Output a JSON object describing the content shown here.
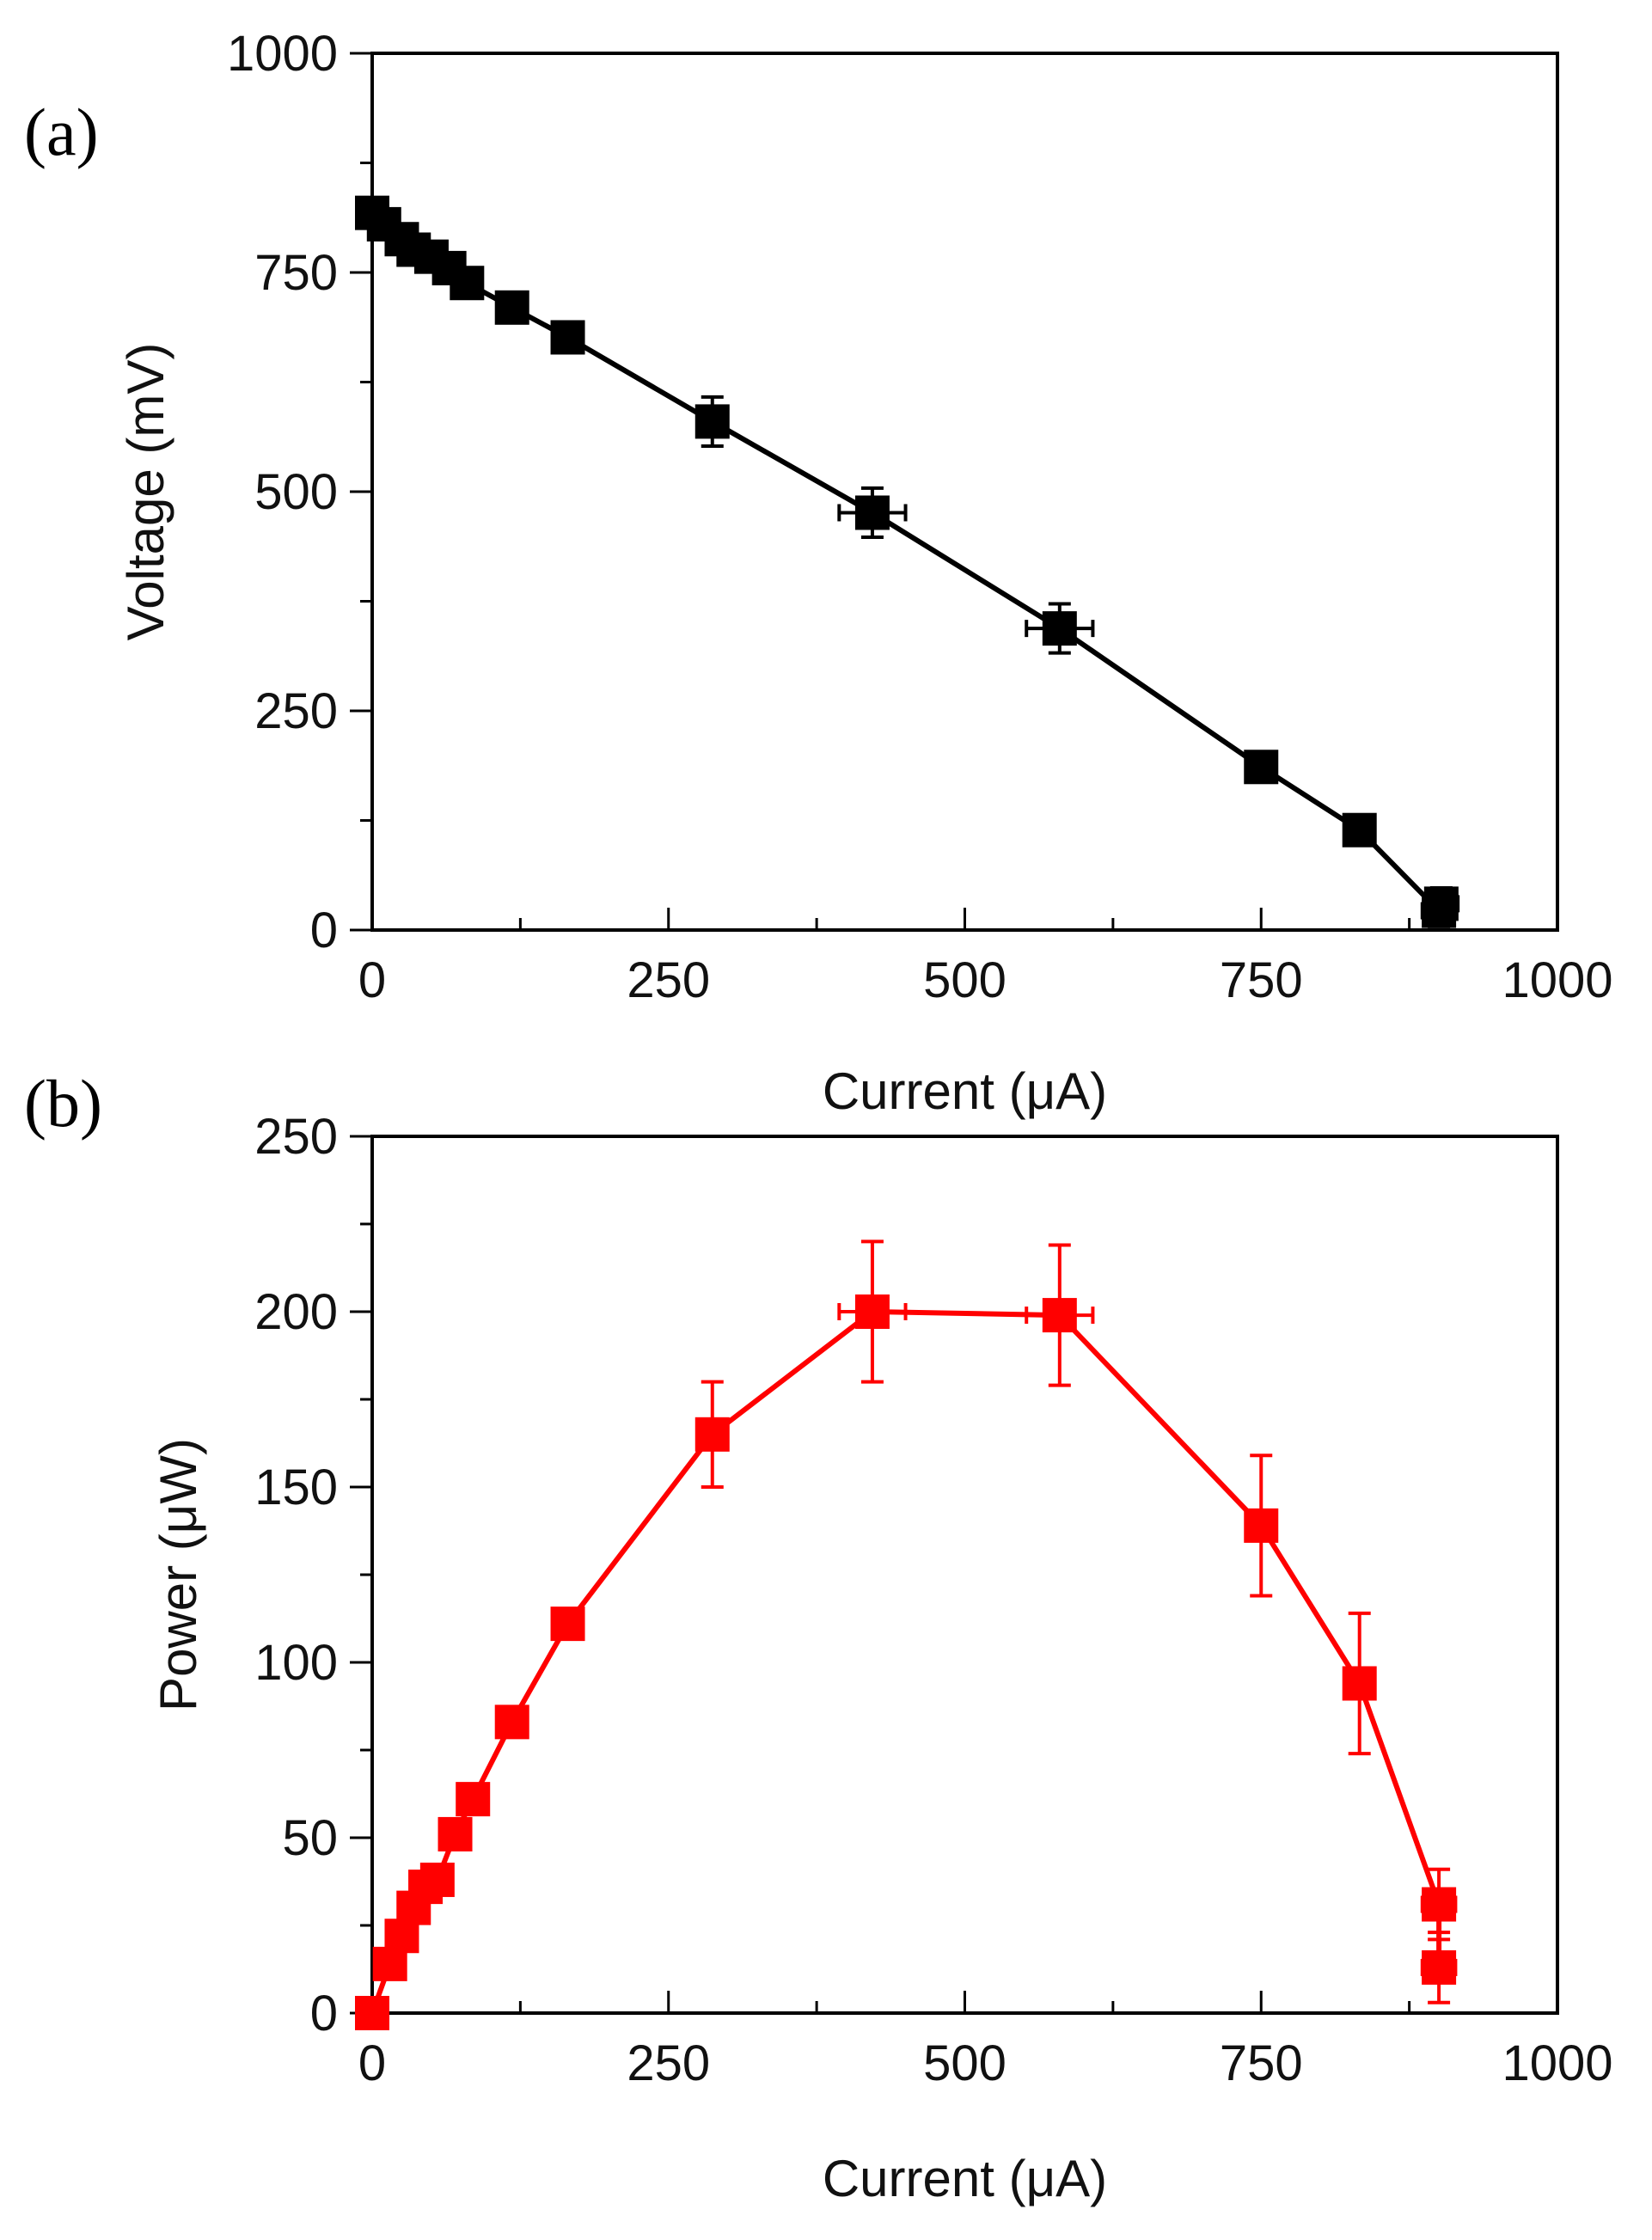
{
  "chart_data": [
    {
      "id": "a",
      "type": "line",
      "panel_label": "(a)",
      "xlabel": "Current (μA)",
      "ylabel": "Voltage (mV)",
      "xlim": [
        0,
        1000
      ],
      "ylim": [
        0,
        1000
      ],
      "xticks": [
        0,
        250,
        500,
        750,
        1000
      ],
      "yticks": [
        0,
        250,
        500,
        750,
        1000
      ],
      "color": "#000000",
      "series": [
        {
          "name": "Voltage",
          "x": [
            0,
            10,
            25,
            35,
            50,
            65,
            80,
            118,
            165,
            287,
            422,
            580,
            750,
            833,
            900,
            902
          ],
          "y": [
            818,
            805,
            788,
            776,
            768,
            755,
            738,
            710,
            676,
            580,
            476,
            344,
            186,
            114,
            22,
            30
          ],
          "xerr": [
            0,
            0,
            0,
            0,
            0,
            0,
            0,
            0,
            0,
            12,
            28,
            28,
            10,
            10,
            14,
            14
          ],
          "yerr": [
            0,
            0,
            0,
            0,
            0,
            0,
            0,
            0,
            0,
            28,
            28,
            28,
            10,
            10,
            18,
            18
          ]
        }
      ]
    },
    {
      "id": "b",
      "type": "line",
      "panel_label": "(b)",
      "xlabel": "Current (μA)",
      "ylabel": "Power (μW)",
      "xlim": [
        0,
        1000
      ],
      "ylim": [
        0,
        250
      ],
      "xticks": [
        0,
        250,
        500,
        750,
        1000
      ],
      "yticks": [
        0,
        50,
        100,
        150,
        200,
        250
      ],
      "color": "#ff0000",
      "series": [
        {
          "name": "Power",
          "x": [
            0,
            15,
            25,
            35,
            45,
            55,
            70,
            85,
            118,
            165,
            287,
            422,
            580,
            750,
            833,
            900,
            900
          ],
          "y": [
            0,
            14,
            22,
            30,
            36,
            38,
            51,
            61,
            83,
            111,
            165,
            200,
            199,
            139,
            94,
            31,
            13
          ],
          "xerr": [
            0,
            0,
            0,
            0,
            0,
            0,
            0,
            0,
            0,
            0,
            12,
            28,
            28,
            10,
            10,
            14,
            14
          ],
          "yerr": [
            0,
            0,
            0,
            0,
            0,
            0,
            0,
            0,
            0,
            0,
            15,
            20,
            20,
            20,
            20,
            10,
            10
          ]
        }
      ]
    }
  ]
}
